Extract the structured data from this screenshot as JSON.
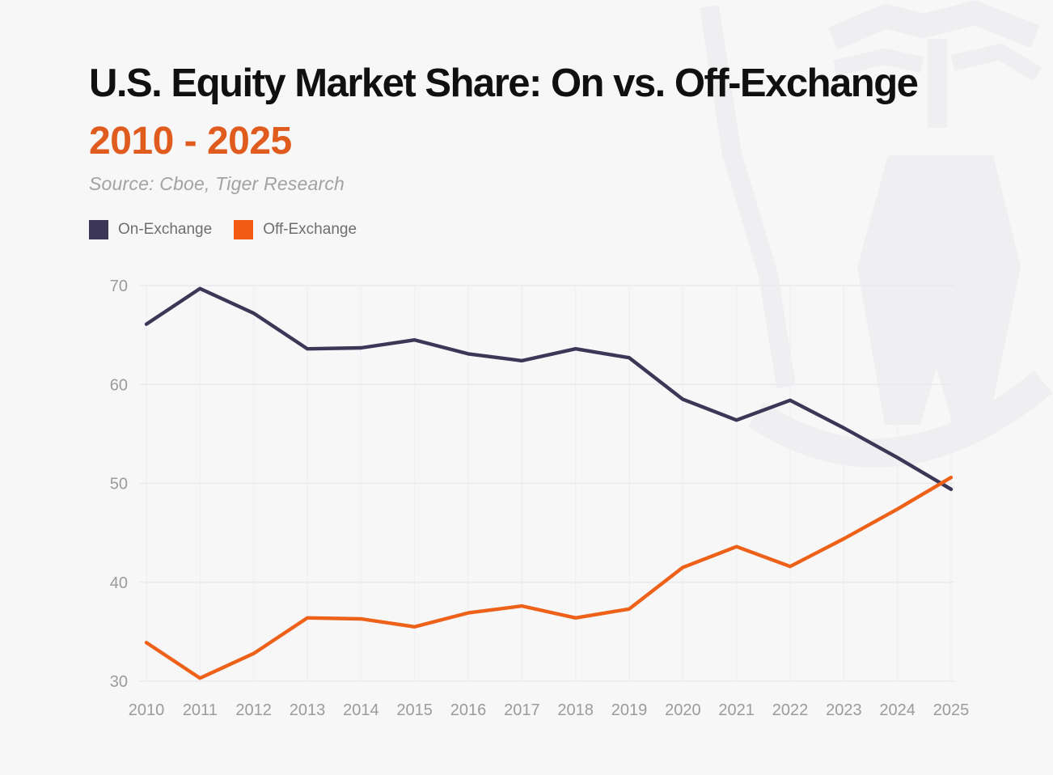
{
  "header": {
    "title": "U.S. Equity Market Share: On vs. Off-Exchange",
    "subtitle": "2010 - 2025",
    "source": "Source: Cboe, Tiger Research"
  },
  "legend": {
    "items": [
      {
        "label": "On-Exchange",
        "color": "#3D3757"
      },
      {
        "label": "Off-Exchange",
        "color": "#F25C12"
      }
    ]
  },
  "colors": {
    "background": "#F7F7F8",
    "accent_orange": "#DF5B1E",
    "on_exchange": "#3D3757",
    "off_exchange": "#ED6119",
    "title_text": "#101010",
    "source_text": "#A2A2A2",
    "legend_text": "#6E6E6E",
    "tick_text": "#9B9B9B",
    "grid_horizontal": "#EAEAEE",
    "grid_vertical": "#F0F0F3",
    "watermark": "#EFEFF1"
  },
  "chart_data": {
    "type": "line",
    "title": "U.S. Equity Market Share: On vs. Off-Exchange",
    "subtitle": "2010 - 2025",
    "source": "Source: Cboe, Tiger Research",
    "x": [
      2010,
      2011,
      2012,
      2013,
      2014,
      2015,
      2016,
      2017,
      2018,
      2019,
      2020,
      2021,
      2022,
      2023,
      2024,
      2025
    ],
    "series": [
      {
        "name": "On-Exchange",
        "color": "#3D3757",
        "values": [
          66.1,
          69.7,
          67.2,
          63.6,
          63.7,
          64.5,
          63.1,
          62.4,
          63.6,
          62.7,
          58.5,
          56.4,
          58.4,
          55.6,
          52.6,
          49.4
        ]
      },
      {
        "name": "Off-Exchange",
        "color": "#ED6119",
        "values": [
          33.9,
          30.3,
          32.8,
          36.4,
          36.3,
          35.5,
          36.9,
          37.6,
          36.4,
          37.3,
          41.5,
          43.6,
          41.6,
          44.4,
          47.4,
          50.6
        ]
      }
    ],
    "xlabel": "",
    "ylabel": "",
    "ylim": [
      30,
      70
    ],
    "yticks": [
      30,
      40,
      50,
      60,
      70
    ],
    "grid": true,
    "legend_position": "top-left",
    "unit": "percent"
  }
}
